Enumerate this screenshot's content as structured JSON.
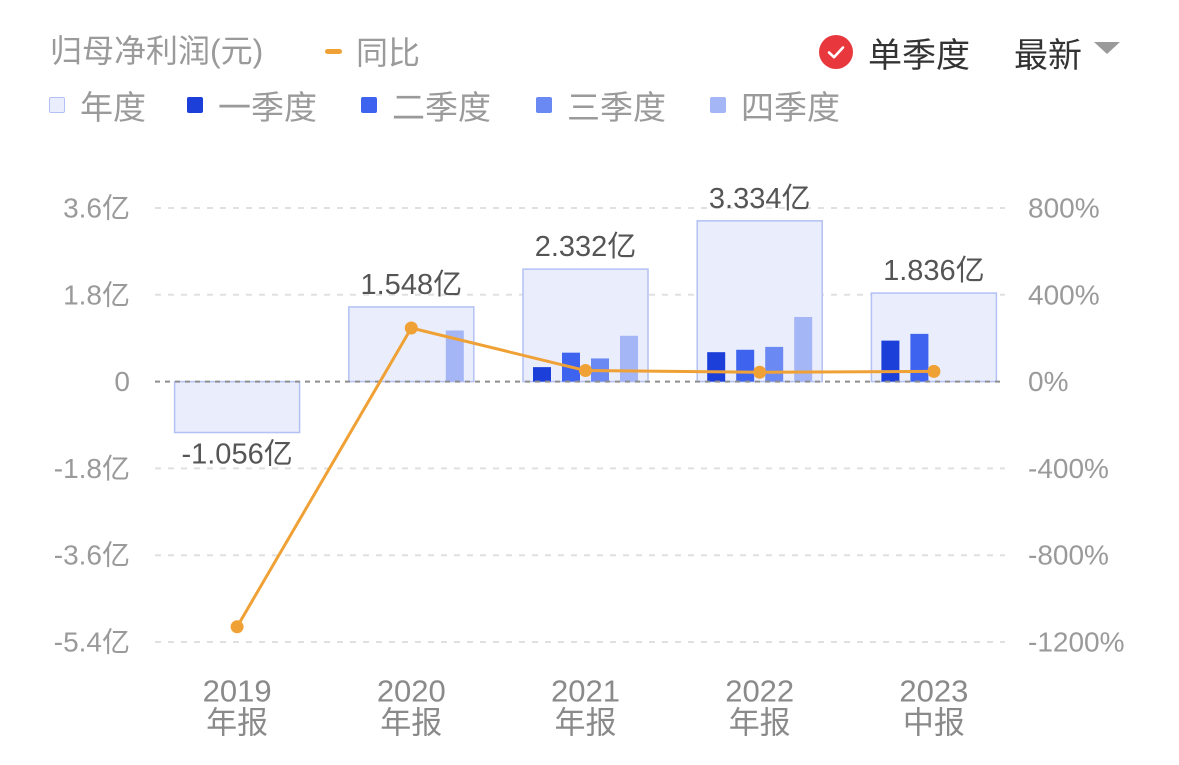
{
  "controls": {
    "single_quarter_label": "单季度",
    "single_quarter_checked": true,
    "period_select_value": "最新",
    "check_color": "#e8383d",
    "icons": {
      "single_quarter": "check-circle-icon",
      "period_select": "caret-down-icon"
    }
  },
  "chart_data": {
    "type": "bar",
    "title": "归母净利润(元)",
    "legend_position": "top-left",
    "grid": true,
    "categories": [
      [
        "2019",
        "年报"
      ],
      [
        "2020",
        "年报"
      ],
      [
        "2021",
        "年报"
      ],
      [
        "2022",
        "年报"
      ],
      [
        "2023",
        "中报"
      ]
    ],
    "y_left": {
      "range": [
        -5.4,
        3.6
      ],
      "ticks": [
        {
          "value": 3.6,
          "label": "3.6亿"
        },
        {
          "value": 1.8,
          "label": "1.8亿"
        },
        {
          "value": 0,
          "label": "0"
        },
        {
          "value": -1.8,
          "label": "-1.8亿"
        },
        {
          "value": -3.6,
          "label": "-3.6亿"
        },
        {
          "value": -5.4,
          "label": "-5.4亿"
        }
      ]
    },
    "y_right": {
      "range": [
        -1200,
        800
      ],
      "ticks": [
        {
          "value": 800,
          "label": "800%"
        },
        {
          "value": 400,
          "label": "400%"
        },
        {
          "value": 0,
          "label": "0%"
        },
        {
          "value": -400,
          "label": "-400%"
        },
        {
          "value": -800,
          "label": "-800%"
        },
        {
          "value": -1200,
          "label": "-1200%"
        }
      ]
    },
    "series": [
      {
        "name": "年度",
        "type": "bar",
        "axis": "left",
        "color": "#e9edfc",
        "border_color": "#b3c1f4",
        "values": [
          -1.056,
          1.548,
          2.332,
          3.334,
          1.836
        ],
        "labels": [
          "-1.056亿",
          "1.548亿",
          "2.332亿",
          "3.334亿",
          "1.836亿"
        ]
      },
      {
        "name": "一季度",
        "type": "bar",
        "axis": "left",
        "color": "#1b3fd8",
        "values": [
          null,
          null,
          0.3,
          0.61,
          0.85
        ]
      },
      {
        "name": "二季度",
        "type": "bar",
        "axis": "left",
        "color": "#3e64ef",
        "values": [
          null,
          null,
          0.6,
          0.66,
          0.99
        ]
      },
      {
        "name": "三季度",
        "type": "bar",
        "axis": "left",
        "color": "#6b89f3",
        "values": [
          null,
          null,
          0.48,
          0.72,
          null
        ]
      },
      {
        "name": "四季度",
        "type": "bar",
        "axis": "left",
        "color": "#a5b6f7",
        "values": [
          null,
          1.06,
          0.95,
          1.34,
          null
        ]
      },
      {
        "name": "同比",
        "type": "line",
        "axis": "right",
        "color": "#f0a135",
        "values": [
          -1130,
          247,
          51,
          43,
          47
        ]
      }
    ]
  }
}
